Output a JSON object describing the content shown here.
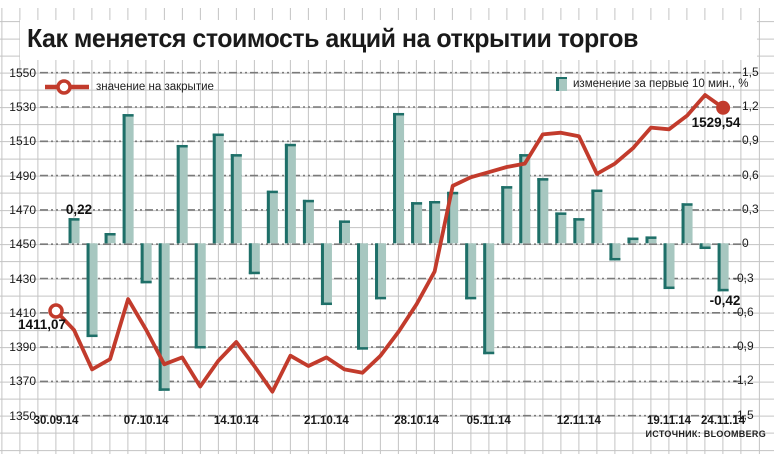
{
  "title": "Как меняется стоимость акций на открытии торгов",
  "source": "ИСТОЧНИК: BLOOMBERG",
  "legend": {
    "line_label": "значение на закрытие",
    "bar_label": "изменение за первые 10 мин., %"
  },
  "annotations": {
    "first_close": "1411,07",
    "last_close": "1529,54",
    "first_bar": "0,22",
    "last_bar": "-0,42"
  },
  "colors": {
    "line": "#c23b2c",
    "bar_fill": "#a7c7c0",
    "bar_edge": "#1e6f68",
    "grid_major": "#7a7a7a",
    "text": "#1a1a1a"
  },
  "chart_data": {
    "type": "line+bar",
    "title": "Как меняется стоимость акций на открытии торгов",
    "x": [
      "30.09.14",
      "01.10.14",
      "02.10.14",
      "03.10.14",
      "06.10.14",
      "07.10.14",
      "08.10.14",
      "09.10.14",
      "10.10.14",
      "13.10.14",
      "14.10.14",
      "15.10.14",
      "16.10.14",
      "17.10.14",
      "20.10.14",
      "21.10.14",
      "22.10.14",
      "23.10.14",
      "24.10.14",
      "27.10.14",
      "28.10.14",
      "29.10.14",
      "30.10.14",
      "31.10.14",
      "05.11.14",
      "06.11.14",
      "07.11.14",
      "10.11.14",
      "11.11.14",
      "12.11.14",
      "13.11.14",
      "14.11.14",
      "17.11.14",
      "18.11.14",
      "19.11.14",
      "20.11.14",
      "21.11.14",
      "24.11.14"
    ],
    "series": [
      {
        "name": "значение на закрытие",
        "type": "line",
        "axis": "left",
        "values": [
          1411.07,
          1400,
          1377,
          1383,
          1418,
          1400,
          1380,
          1384,
          1367,
          1382,
          1393,
          1379,
          1364,
          1385,
          1379,
          1384,
          1377,
          1375,
          1385,
          1399,
          1415,
          1434,
          1484,
          1489,
          1492,
          1495,
          1497,
          1514,
          1515,
          1513,
          1491,
          1497,
          1506,
          1518,
          1517,
          1525,
          1537,
          1529.54
        ]
      },
      {
        "name": "изменение за первые 10 мин., %",
        "type": "bar",
        "axis": "right",
        "values": [
          null,
          0.22,
          -0.82,
          0.09,
          1.13,
          -0.35,
          -1.29,
          0.86,
          -0.92,
          0.96,
          0.78,
          -0.27,
          0.46,
          0.87,
          0.38,
          -0.54,
          0.2,
          -0.93,
          -0.49,
          1.14,
          0.36,
          0.37,
          0.45,
          -0.49,
          -0.97,
          0.5,
          0.78,
          0.57,
          0.27,
          0.22,
          0.47,
          -0.15,
          0.05,
          0.06,
          -0.4,
          0.35,
          -0.05,
          -0.42
        ]
      }
    ],
    "x_ticks": [
      "30.09.14",
      "07.10.14",
      "14.10.14",
      "21.10.14",
      "28.10.14",
      "05.11.14",
      "12.11.14",
      "19.11.14",
      "24.11.14"
    ],
    "x_tick_indices": [
      0,
      5,
      10,
      15,
      20,
      24,
      29,
      34,
      37
    ],
    "y_left": {
      "min": 1350,
      "max": 1550,
      "step": 20,
      "ticks": [
        "1550",
        "1530",
        "1510",
        "1490",
        "1470",
        "1450",
        "1430",
        "1410",
        "1390",
        "1370",
        "1350"
      ]
    },
    "y_right": {
      "min": -1.5,
      "max": 1.5,
      "step": 0.3,
      "ticks": [
        "1,5",
        "1,2",
        "0,9",
        "0,6",
        "0,3",
        "0",
        "-0,3",
        "-0,6",
        "-0,9",
        "-1,2",
        "-1,5"
      ]
    },
    "bar_baseline_right": 0,
    "grid": "fine graph-paper grid, dash-dot major horizontal lines",
    "legend_position": "top"
  }
}
